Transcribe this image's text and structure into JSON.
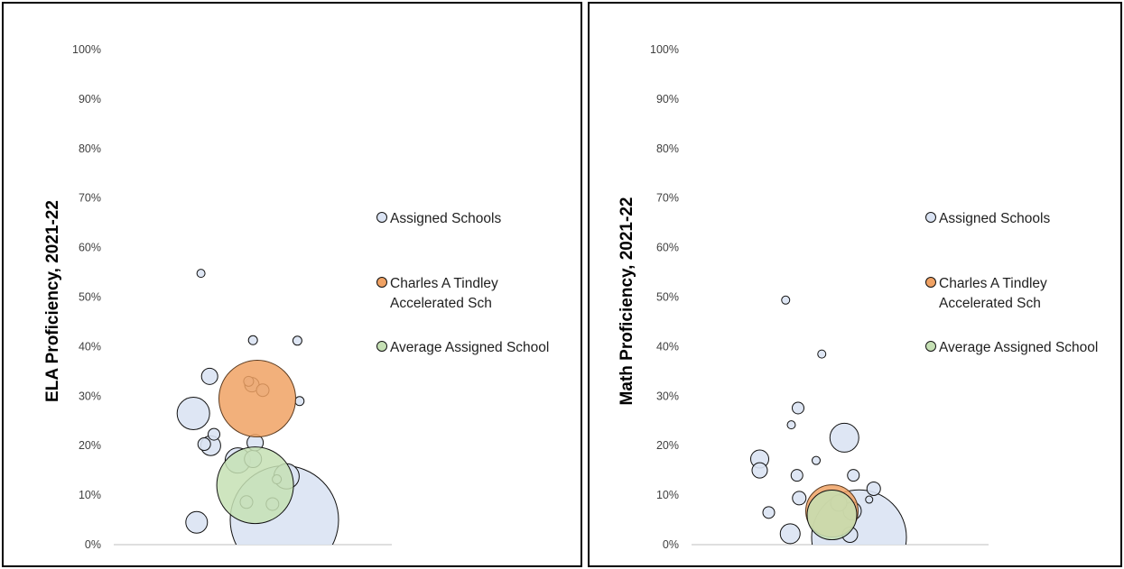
{
  "chart_data": [
    {
      "type": "scatter",
      "ylabel": "ELA Proficiency, 2021-22",
      "ylim": [
        0,
        100
      ],
      "yticks": [
        "0%",
        "10%",
        "20%",
        "30%",
        "40%",
        "50%",
        "60%",
        "70%",
        "80%",
        "90%",
        "100%"
      ],
      "legend": {
        "placement": "right",
        "entries": [
          "Assigned Schools",
          "Charles A Tindley Accelerated Sch",
          "Average Assigned School"
        ]
      },
      "series": [
        {
          "name": "Assigned Schools",
          "color": "#dae3f3",
          "points": [
            {
              "x": 0.8,
              "y": 5.0,
              "size": 120
            },
            {
              "x": 0.03,
              "y": 54.8,
              "size": 9
            },
            {
              "x": 0.51,
              "y": 41.3,
              "size": 10
            },
            {
              "x": 0.92,
              "y": 41.2,
              "size": 10
            },
            {
              "x": 0.11,
              "y": 34.0,
              "size": 18
            },
            {
              "x": 0.47,
              "y": 33.0,
              "size": 11
            },
            {
              "x": 0.5,
              "y": 32.3,
              "size": 16
            },
            {
              "x": 0.6,
              "y": 31.2,
              "size": 14
            },
            {
              "x": 0.94,
              "y": 29.0,
              "size": 10
            },
            {
              "x": -0.04,
              "y": 26.5,
              "size": 36
            },
            {
              "x": 0.15,
              "y": 22.3,
              "size": 13
            },
            {
              "x": 0.06,
              "y": 20.3,
              "size": 14
            },
            {
              "x": 0.12,
              "y": 20.0,
              "size": 22
            },
            {
              "x": 0.53,
              "y": 20.6,
              "size": 18
            },
            {
              "x": 0.37,
              "y": 17.0,
              "size": 28
            },
            {
              "x": 0.51,
              "y": 17.3,
              "size": 19
            },
            {
              "x": 0.82,
              "y": 13.8,
              "size": 28
            },
            {
              "x": 0.73,
              "y": 13.2,
              "size": 10
            },
            {
              "x": 0.69,
              "y": 8.2,
              "size": 14
            },
            {
              "x": 0.45,
              "y": 8.6,
              "size": 14
            },
            {
              "x": -0.01,
              "y": 4.5,
              "size": 24
            }
          ]
        },
        {
          "name": "Charles A Tindley Accelerated Sch",
          "color": "#f0a264",
          "points": [
            {
              "x": 0.55,
              "y": 29.5,
              "size": 85
            }
          ]
        },
        {
          "name": "Average Assigned School",
          "color": "#c5e0b4",
          "points": [
            {
              "x": 0.53,
              "y": 12.0,
              "size": 85
            }
          ]
        }
      ]
    },
    {
      "type": "scatter",
      "ylabel": "Math Proficiency, 2021-22",
      "ylim": [
        0,
        100
      ],
      "yticks": [
        "0%",
        "10%",
        "20%",
        "30%",
        "40%",
        "50%",
        "60%",
        "70%",
        "80%",
        "90%",
        "100%"
      ],
      "legend": {
        "placement": "right",
        "entries": [
          "Assigned Schools",
          "Charles A Tindley Accelerated Sch",
          "Average Assigned School"
        ]
      },
      "series": [
        {
          "name": "Assigned Schools",
          "color": "#dae3f3",
          "points": [
            {
              "x": 0.82,
              "y": 1.5,
              "size": 105
            },
            {
              "x": 0.17,
              "y": 49.4,
              "size": 9
            },
            {
              "x": 0.49,
              "y": 38.5,
              "size": 9
            },
            {
              "x": 0.28,
              "y": 27.6,
              "size": 13
            },
            {
              "x": 0.69,
              "y": 21.6,
              "size": 32
            },
            {
              "x": 0.22,
              "y": 24.2,
              "size": 9
            },
            {
              "x": -0.06,
              "y": 17.3,
              "size": 20
            },
            {
              "x": -0.06,
              "y": 15.0,
              "size": 17
            },
            {
              "x": 0.44,
              "y": 17.0,
              "size": 9
            },
            {
              "x": 0.27,
              "y": 14.0,
              "size": 13
            },
            {
              "x": 0.77,
              "y": 14.0,
              "size": 13
            },
            {
              "x": 0.95,
              "y": 11.3,
              "size": 15
            },
            {
              "x": 0.91,
              "y": 9.1,
              "size": 8
            },
            {
              "x": 0.64,
              "y": 8.4,
              "size": 18
            },
            {
              "x": 0.76,
              "y": 6.8,
              "size": 20
            },
            {
              "x": 0.02,
              "y": 6.5,
              "size": 13
            },
            {
              "x": 0.29,
              "y": 9.4,
              "size": 15
            },
            {
              "x": 0.21,
              "y": 2.2,
              "size": 22
            },
            {
              "x": 0.74,
              "y": 2.0,
              "size": 17
            }
          ]
        },
        {
          "name": "Charles A Tindley Accelerated Sch",
          "color": "#f0a264",
          "points": [
            {
              "x": 0.58,
              "y": 6.8,
              "size": 58
            }
          ]
        },
        {
          "name": "Average Assigned School",
          "color": "#c5e0b4",
          "points": [
            {
              "x": 0.58,
              "y": 6.0,
              "size": 55
            }
          ]
        }
      ]
    }
  ]
}
